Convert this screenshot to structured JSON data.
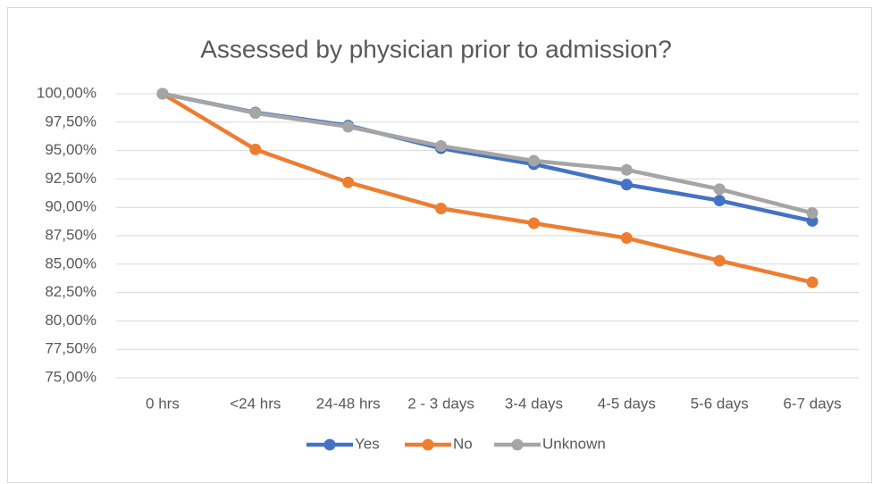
{
  "chart_data": {
    "type": "line",
    "title": "Assessed by physician prior to admission?",
    "categories": [
      "0 hrs",
      "<24 hrs",
      "24-48 hrs",
      "2 - 3 days",
      "3-4 days",
      "4-5 days",
      "5-6 days",
      "6-7 days"
    ],
    "series": [
      {
        "name": "Yes",
        "color": "#4472c4",
        "values": [
          100,
          98.35,
          97.2,
          95.2,
          93.8,
          92.0,
          90.6,
          88.8
        ]
      },
      {
        "name": "No",
        "color": "#ed7d31",
        "values": [
          100,
          95.1,
          92.2,
          89.9,
          88.6,
          87.3,
          85.3,
          83.4
        ]
      },
      {
        "name": "Unknown",
        "color": "#a5a5a5",
        "values": [
          100,
          98.3,
          97.1,
          95.4,
          94.1,
          93.3,
          91.6,
          89.5
        ]
      }
    ],
    "ylim": [
      75,
      100
    ],
    "yticks": [
      {
        "value": 75,
        "label": "75,00%"
      },
      {
        "value": 77.5,
        "label": "77,50%"
      },
      {
        "value": 80,
        "label": "80,00%"
      },
      {
        "value": 82.5,
        "label": "82,50%"
      },
      {
        "value": 85,
        "label": "85,00%"
      },
      {
        "value": 87.5,
        "label": "87,50%"
      },
      {
        "value": 90,
        "label": "90,00%"
      },
      {
        "value": 92.5,
        "label": "92,50%"
      },
      {
        "value": 95,
        "label": "95,00%"
      },
      {
        "value": 97.5,
        "label": "97,50%"
      },
      {
        "value": 100,
        "label": "100,00%"
      }
    ],
    "grid": true,
    "legend": "bottom"
  }
}
